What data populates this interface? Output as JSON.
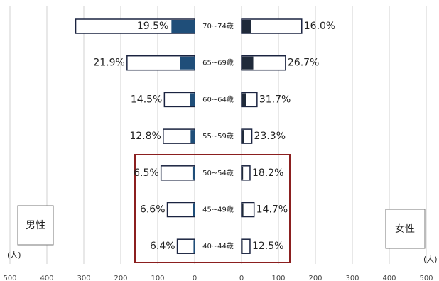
{
  "chart_data": {
    "type": "pyramid",
    "categories": [
      "70~74歳",
      "65~69歳",
      "60~64歳",
      "55~59歳",
      "50~54歳",
      "45~49歳",
      "40~44歳"
    ],
    "series": [
      {
        "name": "男性",
        "side": "left",
        "color": "#1f4e79",
        "values": [
          322,
          183,
          82,
          85,
          91,
          74,
          47
        ],
        "shares": [
          19.5,
          21.9,
          14.5,
          12.8,
          6.5,
          6.6,
          6.4
        ],
        "value_labels": [
          "19.5%",
          "21.9%",
          "14.5%",
          "12.8%",
          "6.5%",
          "6.6%",
          "6.4%"
        ]
      },
      {
        "name": "女性",
        "side": "right",
        "color": "#1f2a3a",
        "values": [
          163,
          119,
          42,
          28,
          23,
          34,
          23
        ],
        "shares": [
          16.0,
          26.7,
          31.7,
          23.3,
          18.2,
          14.7,
          12.5
        ],
        "value_labels": [
          "16.0%",
          "26.7%",
          "31.7%",
          "23.3%",
          "18.2%",
          "14.7%",
          "12.5%"
        ]
      }
    ],
    "unit_label": "(人)",
    "xlim": [
      0,
      500
    ],
    "xticks": [
      0,
      100,
      200,
      300,
      400,
      500
    ],
    "grid": true
  }
}
